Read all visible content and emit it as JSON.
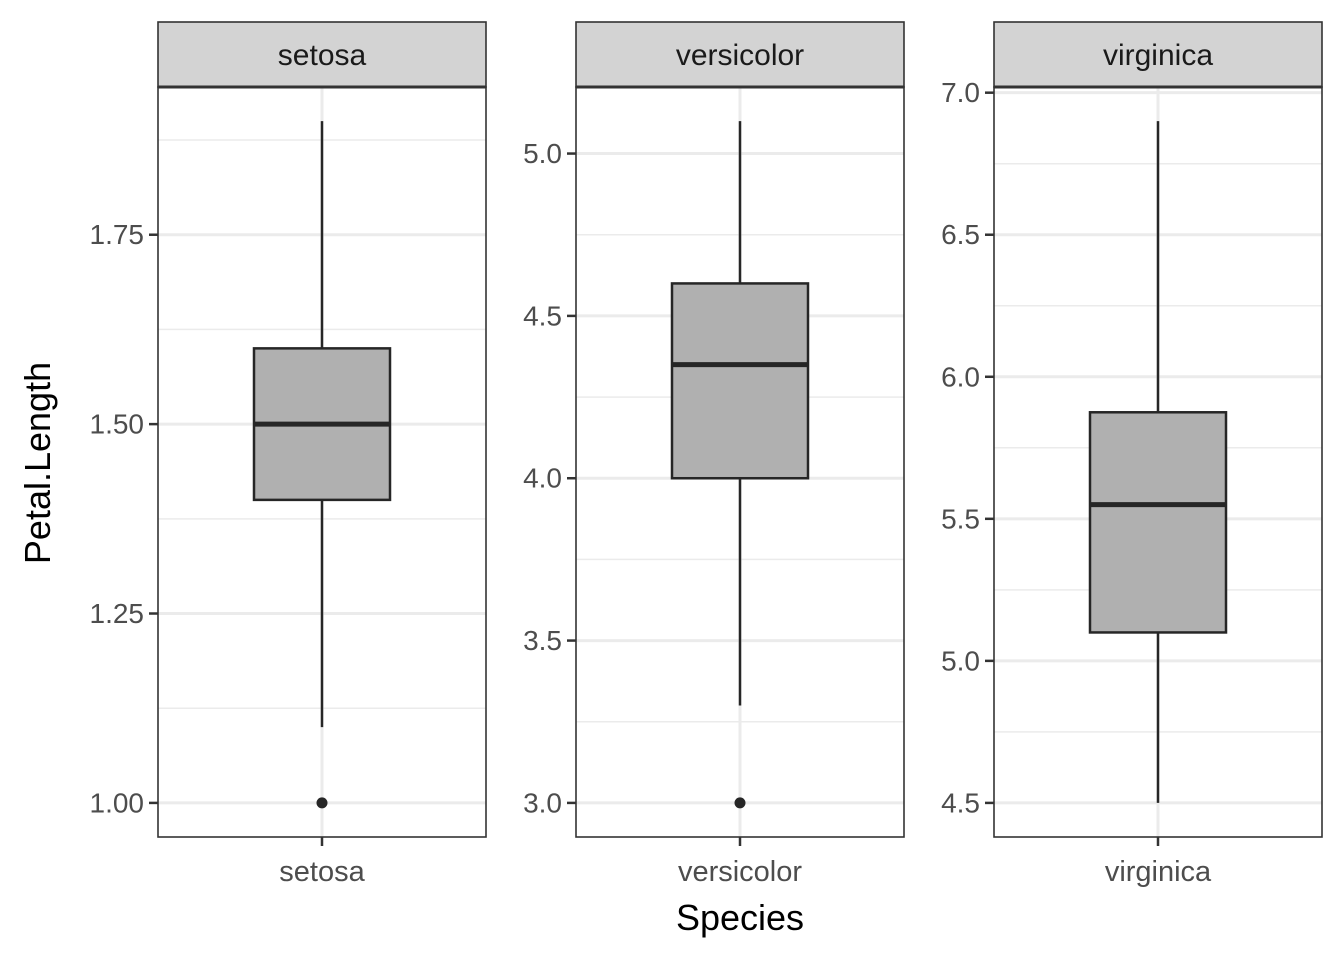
{
  "chart_data": {
    "type": "boxplot",
    "xlabel": "Species",
    "ylabel": "Petal.Length",
    "facet_scales": "free",
    "grid": true,
    "colors": {
      "box_fill": "#b0b0b0",
      "box_line": "#262626",
      "strip_fill": "#d3d3d3",
      "grid": "#ebebeb"
    },
    "panels": [
      {
        "strip": "setosa",
        "category": "setosa",
        "ylim": [
          0.955,
          1.945
        ],
        "y_ticks": [
          1.0,
          1.25,
          1.5,
          1.75
        ],
        "y_tick_labels": [
          "1.00",
          "1.25",
          "1.50",
          "1.75"
        ],
        "whisker_low": 1.1,
        "q1": 1.4,
        "median": 1.5,
        "q3": 1.6,
        "whisker_high": 1.9,
        "outliers": [
          1.0
        ]
      },
      {
        "strip": "versicolor",
        "category": "versicolor",
        "ylim": [
          2.895,
          5.205
        ],
        "y_ticks": [
          3.0,
          3.5,
          4.0,
          4.5,
          5.0
        ],
        "y_tick_labels": [
          "3.0",
          "3.5",
          "4.0",
          "4.5",
          "5.0"
        ],
        "whisker_low": 3.3,
        "q1": 4.0,
        "median": 4.35,
        "q3": 4.6,
        "whisker_high": 5.1,
        "outliers": [
          3.0
        ]
      },
      {
        "strip": "virginica",
        "category": "virginica",
        "ylim": [
          4.38,
          7.02
        ],
        "y_ticks": [
          4.5,
          5.0,
          5.5,
          6.0,
          6.5,
          7.0
        ],
        "y_tick_labels": [
          "4.5",
          "5.0",
          "5.5",
          "6.0",
          "6.5",
          "7.0"
        ],
        "whisker_low": 4.5,
        "q1": 5.1,
        "median": 5.55,
        "q3": 5.875,
        "whisker_high": 6.9,
        "outliers": []
      }
    ]
  }
}
